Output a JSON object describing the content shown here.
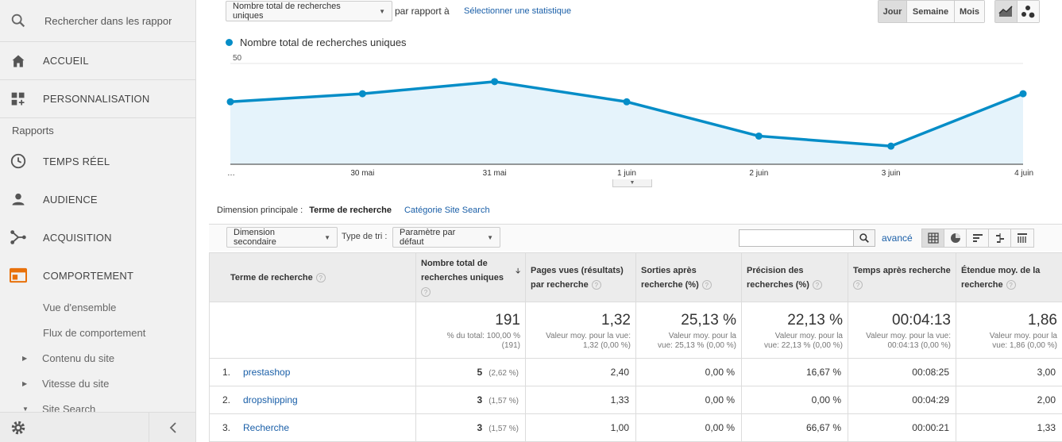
{
  "sidebar": {
    "search_placeholder": "Rechercher dans les rappor",
    "home": "ACCUEIL",
    "custom": "PERSONNALISATION",
    "reports_label": "Rapports",
    "realtime": "TEMPS RÉEL",
    "audience": "AUDIENCE",
    "acquisition": "ACQUISITION",
    "behavior": "COMPORTEMENT",
    "behavior_items": [
      "Vue d'ensemble",
      "Flux de comportement",
      "Contenu du site",
      "Vitesse du site",
      "Site Search"
    ],
    "accent_color": "#e8710a"
  },
  "toolbar": {
    "metric": "Nombre total de recherches uniques",
    "compare_label": "par rapport à",
    "select_stat": "Sélectionner une statistique",
    "periods": [
      "Jour",
      "Semaine",
      "Mois"
    ],
    "active_period": "Jour"
  },
  "chart_data": {
    "type": "area",
    "series": [
      {
        "name": "Nombre total de recherches uniques",
        "values": [
          31,
          35,
          41,
          31,
          14,
          9,
          35
        ]
      }
    ],
    "x": [
      "…",
      "30 mai",
      "31 mai",
      "1 juin",
      "2 juin",
      "3 juin",
      "4 juin"
    ],
    "yticks": [
      25,
      50
    ],
    "ylim": [
      0,
      50
    ],
    "color": "#058dc7",
    "fill": "#e5f3fb"
  },
  "dimension": {
    "label": "Dimension principale :",
    "current": "Terme de recherche",
    "alternate": "Catégorie Site Search"
  },
  "controls": {
    "secondary_dim": "Dimension secondaire",
    "sort_type_label": "Type de tri :",
    "sort_value": "Paramètre par défaut",
    "advanced": "avancé"
  },
  "table": {
    "headers": [
      "Terme de recherche",
      "Nombre total de recherches uniques",
      "Pages vues (résultats) par recherche",
      "Sorties après recherche (%)",
      "Précision des recherches (%)",
      "Temps après recherche",
      "Étendue moy. de la recherche"
    ],
    "totals": [
      {
        "big": "191",
        "small1": "% du total: 100,00 %",
        "small2": "(191)"
      },
      {
        "big": "1,32",
        "small1": "Valeur moy. pour la vue:",
        "small2": "1,32 (0,00 %)"
      },
      {
        "big": "25,13 %",
        "small1": "Valeur moy. pour la",
        "small2": "vue: 25,13 % (0,00 %)"
      },
      {
        "big": "22,13 %",
        "small1": "Valeur moy. pour la",
        "small2": "vue: 22,13 % (0,00 %)"
      },
      {
        "big": "00:04:13",
        "small1": "Valeur moy. pour la vue:",
        "small2": "00:04:13 (0,00 %)"
      },
      {
        "big": "1,86",
        "small1": "Valeur moy. pour la",
        "small2": "vue: 1,86 (0,00 %)"
      }
    ],
    "rows": [
      {
        "idx": "1.",
        "term": "prestashop",
        "count": "5",
        "pct": "(2,62 %)",
        "pages": "2,40",
        "exits": "0,00 %",
        "precision": "16,67 %",
        "time": "00:08:25",
        "depth": "3,00"
      },
      {
        "idx": "2.",
        "term": "dropshipping",
        "count": "3",
        "pct": "(1,57 %)",
        "pages": "1,33",
        "exits": "0,00 %",
        "precision": "0,00 %",
        "time": "00:04:29",
        "depth": "2,00"
      },
      {
        "idx": "3.",
        "term": "Recherche",
        "count": "3",
        "pct": "(1,57 %)",
        "pages": "1,00",
        "exits": "0,00 %",
        "precision": "66,67 %",
        "time": "00:00:21",
        "depth": "1,33"
      }
    ]
  }
}
